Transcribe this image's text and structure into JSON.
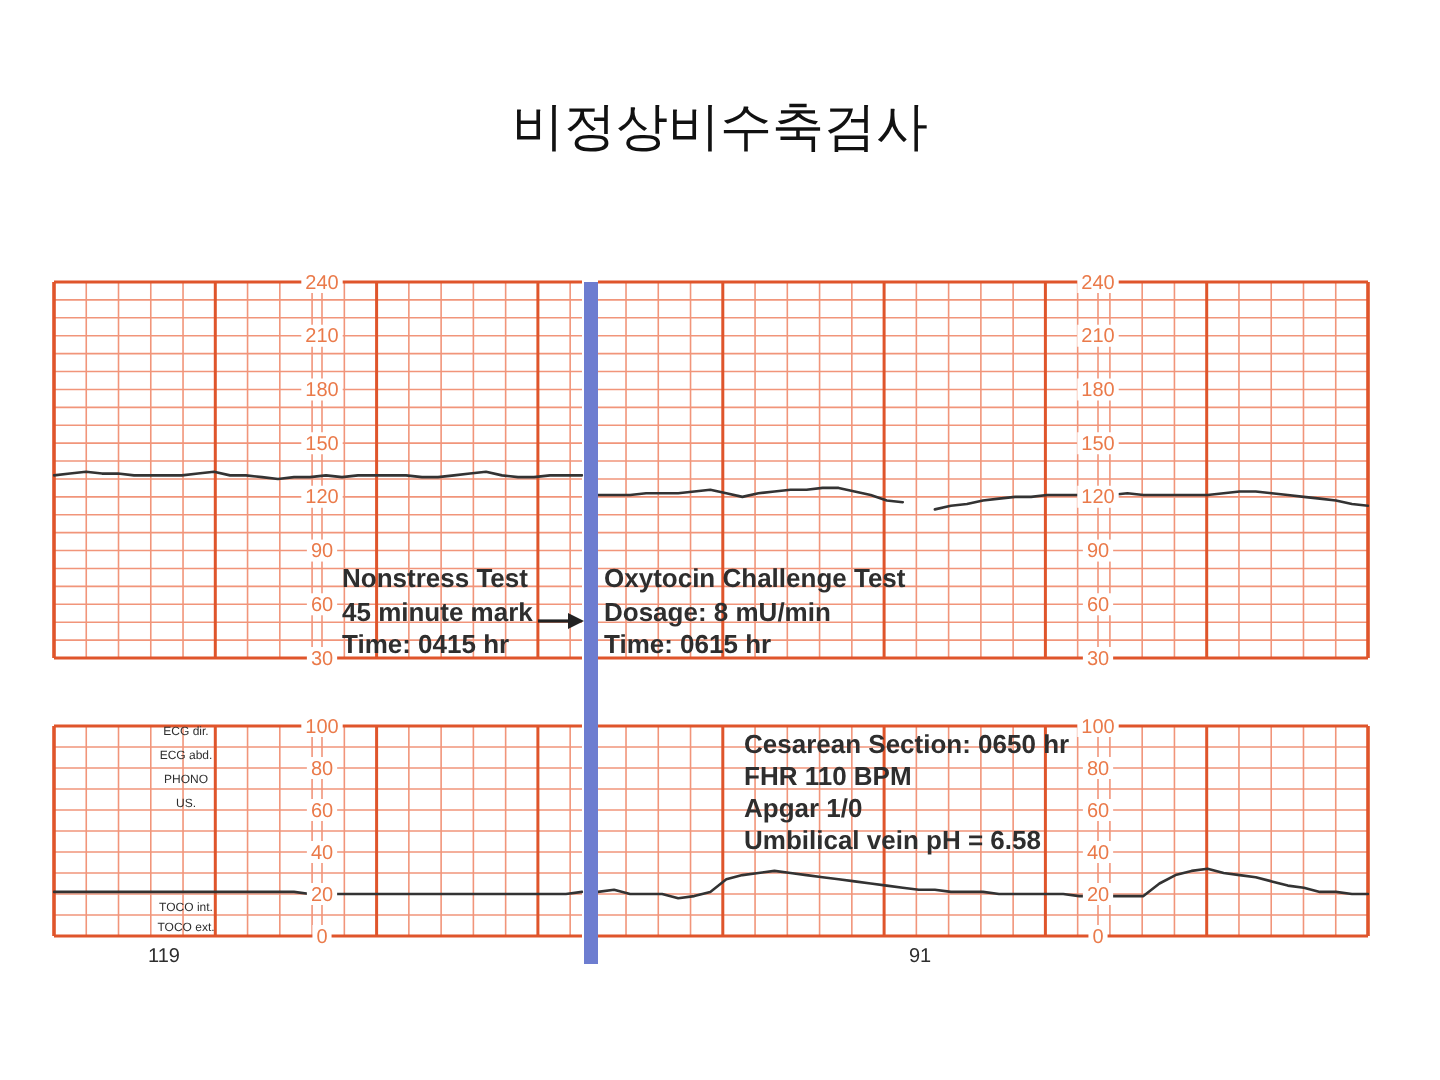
{
  "chart_data": [
    {
      "type": "line",
      "categories": [
        null,
        null,
        null,
        null,
        null,
        null,
        null,
        null,
        null,
        null,
        null,
        null,
        null,
        null,
        null,
        null,
        null,
        null,
        null,
        null,
        null,
        null,
        null,
        null,
        null,
        null,
        null,
        null,
        null,
        null,
        null,
        null,
        null,
        null
      ],
      "values": [
        132,
        133,
        134,
        133,
        133,
        132,
        132,
        132,
        132,
        133,
        134,
        132,
        132,
        131,
        130,
        131,
        131,
        132,
        131,
        132,
        132,
        132,
        132,
        131,
        131,
        132,
        133,
        134,
        132,
        131,
        131,
        132,
        132,
        132
      ],
      "color": "#333333",
      "ylim": [
        30,
        240
      ],
      "yticks": [
        30,
        60,
        90,
        120,
        150,
        180,
        210,
        240
      ],
      "grid": true,
      "tick_labels": "y",
      "marker": "none",
      "annotations": [
        "Nonstress Test",
        "45 minute mark",
        "Time: 0415 hr"
      ]
    },
    {
      "type": "line",
      "title": "비정상비수축검사",
      "categories": [
        null,
        null,
        null,
        null,
        null,
        null,
        null,
        null,
        null,
        null,
        null,
        null,
        null,
        null,
        null,
        null,
        null,
        null,
        null,
        null,
        null,
        null,
        null,
        null,
        null,
        null,
        null,
        null,
        null,
        null,
        null,
        null,
        null,
        null,
        null,
        null,
        null,
        null,
        null,
        null,
        null,
        null,
        null,
        null,
        null,
        null,
        null,
        null,
        null
      ],
      "series": [
        {
          "color": "#333333",
          "values": [
            121,
            121,
            121,
            122,
            122,
            122,
            123,
            124,
            122,
            120,
            122,
            123,
            124,
            124,
            125,
            125,
            123,
            121,
            118,
            117,
            null,
            null,
            null,
            null,
            null,
            null,
            null,
            null,
            null,
            null,
            null,
            null,
            null,
            null,
            null,
            null,
            null,
            null,
            null,
            null,
            null,
            null,
            null,
            null,
            null,
            null,
            null,
            null,
            null
          ]
        },
        {
          "color": "#333333",
          "values": [
            null,
            null,
            null,
            null,
            null,
            null,
            null,
            null,
            null,
            null,
            null,
            null,
            null,
            null,
            null,
            null,
            null,
            null,
            null,
            null,
            null,
            113,
            115,
            116,
            118,
            119,
            120,
            120,
            121,
            121,
            121,
            121,
            121,
            122,
            121,
            121,
            121,
            121,
            121,
            122,
            123,
            123,
            122,
            121,
            120,
            119,
            118,
            116,
            115
          ]
        }
      ],
      "ylim": [
        30,
        240
      ],
      "yticks": [
        30,
        60,
        90,
        120,
        150,
        180,
        210,
        240
      ],
      "grid": true,
      "tick_labels": "y",
      "marker": "none",
      "annotations": [
        "Oxytocin Challenge Test",
        "Dosage: 8 mU/min",
        "Time: 0615 hr"
      ]
    },
    {
      "type": "line",
      "categories": [
        null,
        null,
        null,
        null,
        null,
        null,
        null,
        null,
        null,
        null,
        null,
        null,
        null,
        null,
        null,
        null,
        null,
        null,
        null,
        null,
        null,
        null,
        null,
        null,
        null,
        null,
        null,
        null,
        null,
        null,
        null,
        null,
        null,
        null
      ],
      "values": [
        21,
        21,
        21,
        21,
        21,
        21,
        21,
        21,
        21,
        21,
        21,
        21,
        21,
        21,
        21,
        21,
        20,
        20,
        20,
        20,
        20,
        20,
        20,
        20,
        20,
        20,
        20,
        20,
        20,
        20,
        20,
        20,
        20,
        21
      ],
      "color": "#333333",
      "ylim": [
        0,
        100
      ],
      "yticks": [
        0,
        20,
        40,
        60,
        80,
        100
      ],
      "grid": true,
      "tick_labels": "y",
      "marker": "none",
      "annotations": [
        "ECG dir.",
        "ECG abd.",
        "PHONO",
        "US.",
        "TOCO int.",
        "TOCO ext.",
        "119"
      ]
    },
    {
      "type": "line",
      "categories": [
        null,
        null,
        null,
        null,
        null,
        null,
        null,
        null,
        null,
        null,
        null,
        null,
        null,
        null,
        null,
        null,
        null,
        null,
        null,
        null,
        null,
        null,
        null,
        null,
        null,
        null,
        null,
        null,
        null,
        null,
        null,
        null,
        null,
        null,
        null,
        null,
        null,
        null,
        null,
        null,
        null,
        null,
        null,
        null,
        null,
        null,
        null,
        null,
        null
      ],
      "values": [
        21,
        22,
        20,
        20,
        20,
        18,
        19,
        21,
        27,
        29,
        30,
        31,
        30,
        29,
        28,
        27,
        26,
        25,
        24,
        23,
        22,
        22,
        21,
        21,
        21,
        20,
        20,
        20,
        20,
        20,
        19,
        19,
        19,
        19,
        19,
        25,
        29,
        31,
        32,
        30,
        29,
        28,
        26,
        24,
        23,
        21,
        21,
        20,
        20
      ],
      "color": "#333333",
      "ylim": [
        0,
        100
      ],
      "yticks": [
        0,
        20,
        40,
        60,
        80,
        100
      ],
      "grid": true,
      "tick_labels": "y",
      "marker": "none",
      "annotations": [
        "Cesarean Section: 0650 hr",
        "FHR 110 BPM",
        "Apgar 1/0",
        "Umbilical vein pH = 6.58",
        "91"
      ]
    }
  ]
}
